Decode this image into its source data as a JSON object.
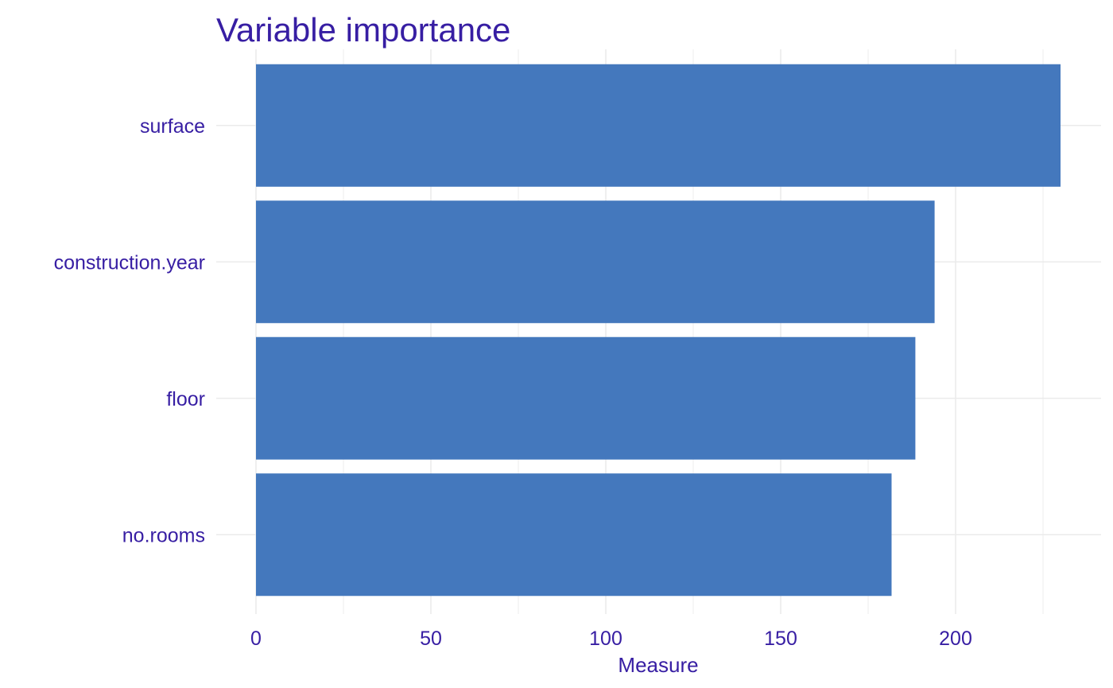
{
  "chart_data": {
    "type": "bar",
    "orientation": "horizontal",
    "title": "Variable importance",
    "xlabel": "Measure",
    "ylabel": "",
    "categories": [
      "surface",
      "construction.year",
      "floor",
      "no.rooms"
    ],
    "values": [
      230,
      194,
      188.5,
      181.7
    ],
    "xlim": [
      0,
      230
    ],
    "x_ticks": [
      0,
      50,
      100,
      150,
      200
    ],
    "grid": true,
    "legend": "none"
  },
  "colors": {
    "bar": "#4478BD",
    "text": "#371EA3",
    "grid": "#EBEBEB"
  }
}
